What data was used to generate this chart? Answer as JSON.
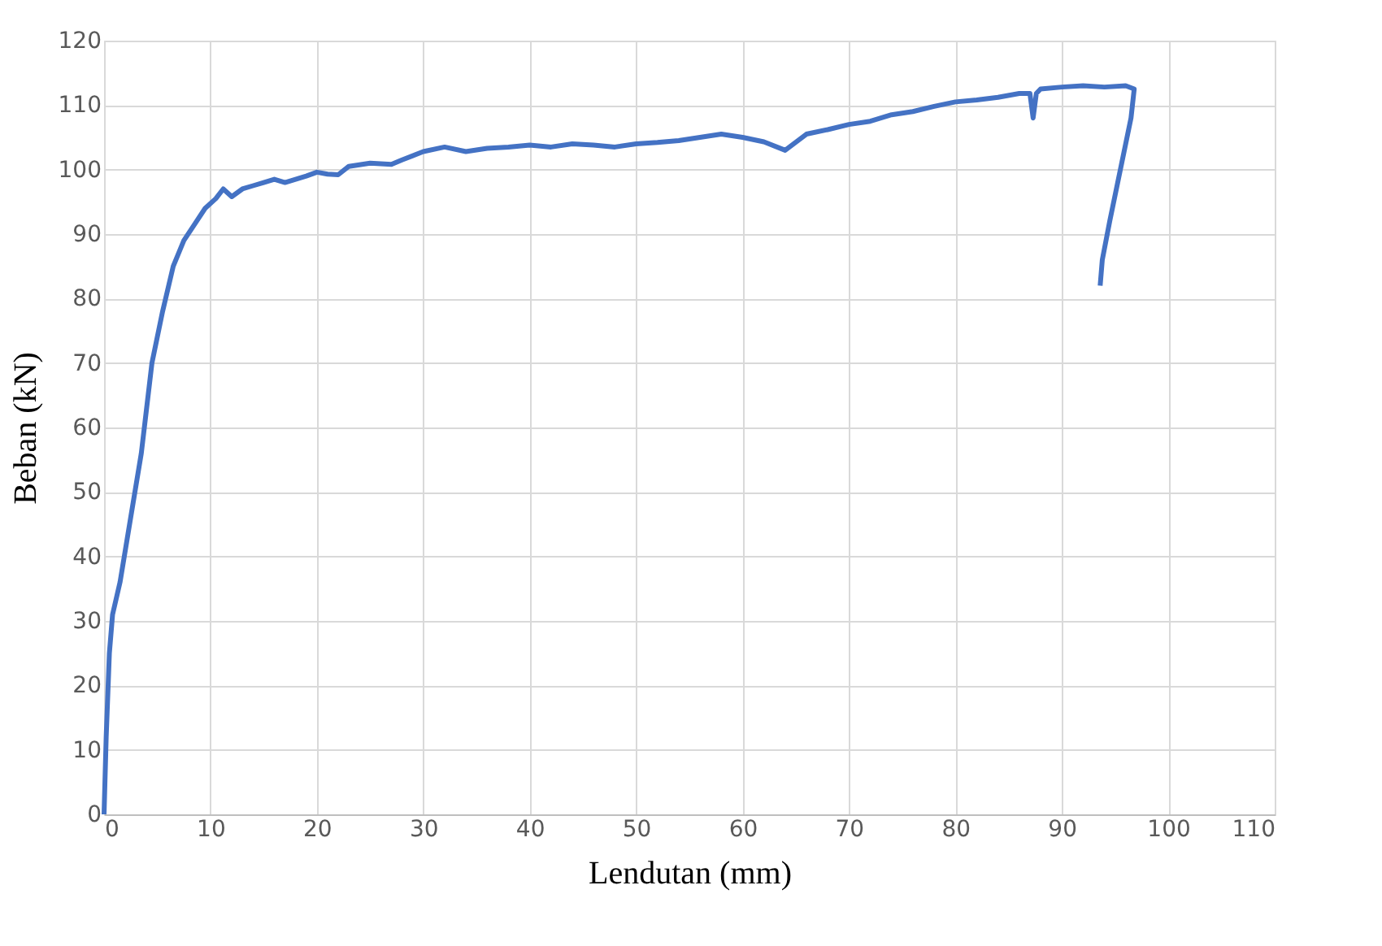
{
  "chart_data": {
    "type": "line",
    "xlabel": "Lendutan (mm)",
    "ylabel": "Beban (kN)",
    "xlim": [
      0,
      110
    ],
    "xticks": [
      0,
      10,
      20,
      30,
      40,
      50,
      60,
      70,
      80,
      90,
      100,
      110
    ],
    "ylim": [
      0,
      120
    ],
    "yticks": [
      0,
      10,
      20,
      30,
      40,
      50,
      60,
      70,
      80,
      90,
      100,
      110,
      120
    ],
    "grid": true,
    "legend": false,
    "marker": "none",
    "line_style": "solid",
    "series": [
      {
        "color": "#4472c4",
        "x": [
          0,
          0.2,
          0.5,
          0.8,
          1.5,
          2.5,
          3.5,
          4.5,
          5.5,
          6.5,
          7.5,
          8.5,
          9.5,
          10.5,
          11.2,
          12,
          13,
          14,
          15,
          16,
          17,
          18,
          19,
          20,
          21,
          22,
          23,
          25,
          27,
          28,
          30,
          32,
          34,
          36,
          38,
          40,
          42,
          44,
          46,
          48,
          50,
          52,
          54,
          56,
          58,
          60,
          62,
          64,
          66,
          68,
          70,
          72,
          74,
          76,
          78,
          80,
          82,
          84,
          86,
          87,
          87.3,
          87.6,
          88,
          90,
          92,
          94,
          96,
          96.8,
          96.5,
          95.5,
          94.5,
          93.8,
          93.6
        ],
        "values": [
          0,
          12,
          25,
          31,
          36,
          46,
          56,
          70,
          78,
          85,
          89,
          91.5,
          94,
          95.5,
          97,
          95.8,
          97,
          97.5,
          98,
          98.5,
          98,
          98.5,
          99,
          99.6,
          99.3,
          99.2,
          100.5,
          101,
          100.8,
          101.5,
          102.8,
          103.5,
          102.8,
          103.3,
          103.5,
          103.8,
          103.5,
          104,
          103.8,
          103.5,
          104,
          104.2,
          104.5,
          105,
          105.5,
          105,
          104.3,
          103,
          105.5,
          106.2,
          107,
          107.5,
          108.5,
          109,
          109.8,
          110.5,
          110.8,
          111.2,
          111.8,
          111.8,
          108,
          111.8,
          112.5,
          112.8,
          113,
          112.8,
          113,
          112.5,
          108,
          100,
          92,
          86,
          82
        ]
      }
    ]
  }
}
